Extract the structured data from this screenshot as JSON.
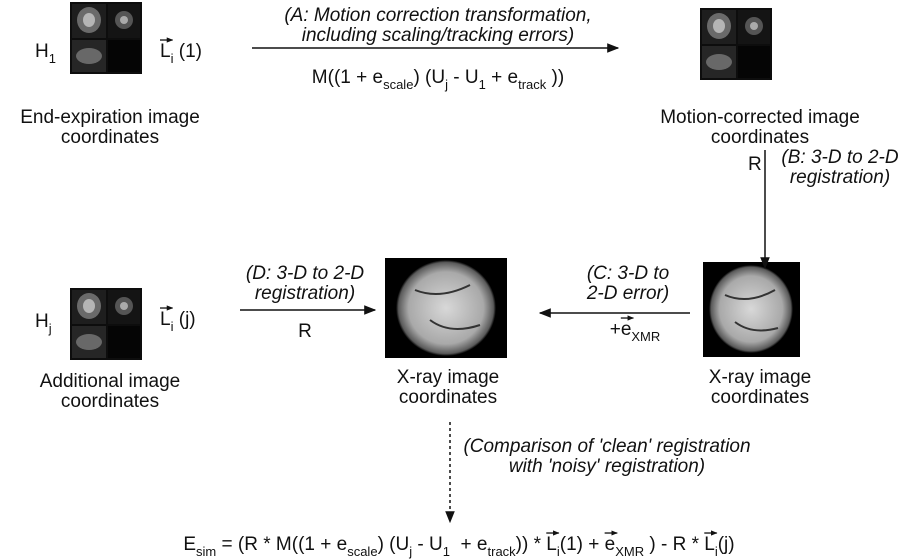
{
  "nodes": [
    {
      "symbol": [
        {
          "base": "H",
          "sub": "1"
        }
      ],
      "label": [
        "End-expiration image",
        "coordinates"
      ]
    },
    {
      "label": [
        "Motion-corrected image",
        "coordinates"
      ]
    },
    {
      "label": [
        "X-ray image",
        "coordinates"
      ]
    },
    {
      "label": [
        "X-ray image",
        "coordinates"
      ]
    },
    {
      "symbol": [
        {
          "base": "H",
          "sub": "j"
        }
      ],
      "label": [
        "Additional image",
        "coordinates"
      ]
    }
  ],
  "edges": [
    {
      "source_term": [
        {
          "base": "L",
          "sub": "i",
          "vector": true
        },
        " (1)"
      ],
      "note": [
        "(A: Motion correction transformation,",
        "including scaling/tracking errors)"
      ],
      "formula": [
        "M((1 + ",
        {
          "base": "e",
          "sub": "scale"
        },
        ") (",
        {
          "base": "U",
          "sub": "j"
        },
        " - ",
        {
          "base": "U",
          "sub": "1"
        },
        " + ",
        {
          "base": "e",
          "sub": "track"
        },
        " ))"
      ]
    },
    {
      "formula": [
        "R"
      ],
      "note": [
        "(B: 3-D to 2-D",
        "registration)"
      ]
    },
    {
      "note": [
        "(C: 3-D to",
        "2-D error)"
      ],
      "formula": [
        "+",
        {
          "base": "e",
          "sub": "XMR",
          "vector": true
        }
      ]
    },
    {
      "source_term": [
        {
          "base": "L",
          "sub": "i",
          "vector": true
        },
        " (j)"
      ],
      "note": [
        "(D: 3-D to 2-D",
        "registration)"
      ],
      "formula": [
        "R"
      ]
    },
    {
      "note": [
        "(Comparison of 'clean' registration",
        "with 'noisy' registration)"
      ]
    }
  ],
  "result": [
    {
      "base": "E",
      "sub": "sim"
    },
    " = (R * M((1 + ",
    {
      "base": "e",
      "sub": "scale"
    },
    ") (",
    {
      "base": "U",
      "sub": "j"
    },
    " - ",
    {
      "base": "U",
      "sub": "1"
    },
    "  + ",
    {
      "base": "e",
      "sub": "track"
    },
    ")) * ",
    {
      "base": "L",
      "sub": "i",
      "vector": true
    },
    "(1) + ",
    {
      "base": "e",
      "sub": "XMR",
      "vector": true
    },
    " ) - R * ",
    {
      "base": "L",
      "sub": "i",
      "vector": true
    },
    "(j)"
  ]
}
